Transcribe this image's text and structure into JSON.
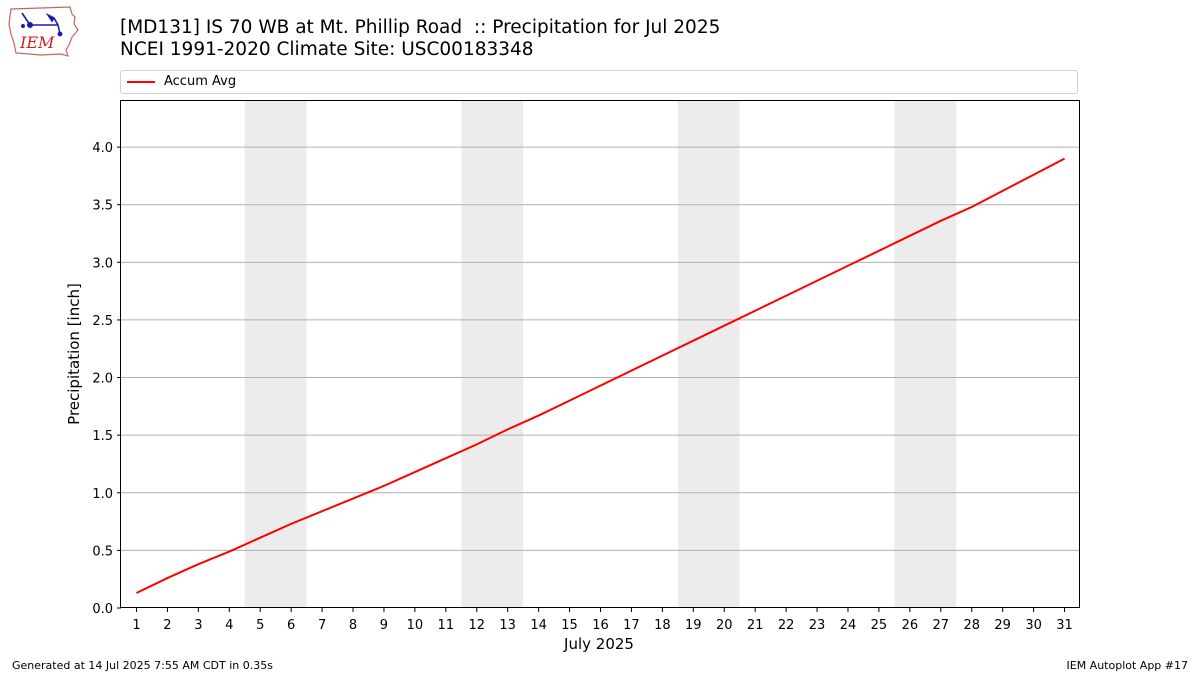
{
  "header": {
    "title_line1": "[MD131] IS 70 WB at Mt. Phillip Road  :: Precipitation for Jul 2025",
    "title_line2": "NCEI 1991-2020 Climate Site: USC00183348"
  },
  "logo": {
    "text": "IEM"
  },
  "footer": {
    "generated": "Generated at 14 Jul 2025 7:55 AM CDT in 0.35s",
    "app": "IEM Autoplot App #17"
  },
  "colors": {
    "series": "#ff0000",
    "weekend": "#ececec",
    "grid": "#b0b0b0"
  },
  "chart_data": {
    "type": "line",
    "xlabel": "July 2025",
    "ylabel": "Precipitation [inch]",
    "xlim": [
      0.5,
      31.5
    ],
    "ylim": [
      0,
      4.4
    ],
    "yticks": [
      0.0,
      0.5,
      1.0,
      1.5,
      2.0,
      2.5,
      3.0,
      3.5,
      4.0
    ],
    "ytick_labels": [
      "0.0",
      "0.5",
      "1.0",
      "1.5",
      "2.0",
      "2.5",
      "3.0",
      "3.5",
      "4.0"
    ],
    "x": [
      1,
      2,
      3,
      4,
      5,
      6,
      7,
      8,
      9,
      10,
      11,
      12,
      13,
      14,
      15,
      16,
      17,
      18,
      19,
      20,
      21,
      22,
      23,
      24,
      25,
      26,
      27,
      28,
      29,
      30,
      31
    ],
    "xtick_labels": [
      "1",
      "2",
      "3",
      "4",
      "5",
      "6",
      "7",
      "8",
      "9",
      "10",
      "11",
      "12",
      "13",
      "14",
      "15",
      "16",
      "17",
      "18",
      "19",
      "20",
      "21",
      "22",
      "23",
      "24",
      "25",
      "26",
      "27",
      "28",
      "29",
      "30",
      "31"
    ],
    "grid": "horizontal",
    "legend_placement": "top",
    "weekend_bands": [
      [
        5,
        6
      ],
      [
        12,
        13
      ],
      [
        19,
        20
      ],
      [
        26,
        27
      ]
    ],
    "series": [
      {
        "name": "Accum Avg",
        "values": [
          0.13,
          0.26,
          0.38,
          0.49,
          0.61,
          0.73,
          0.84,
          0.95,
          1.06,
          1.18,
          1.3,
          1.42,
          1.55,
          1.67,
          1.8,
          1.93,
          2.06,
          2.19,
          2.32,
          2.45,
          2.58,
          2.71,
          2.84,
          2.97,
          3.1,
          3.23,
          3.36,
          3.48,
          3.62,
          3.76,
          3.9
        ]
      }
    ]
  }
}
